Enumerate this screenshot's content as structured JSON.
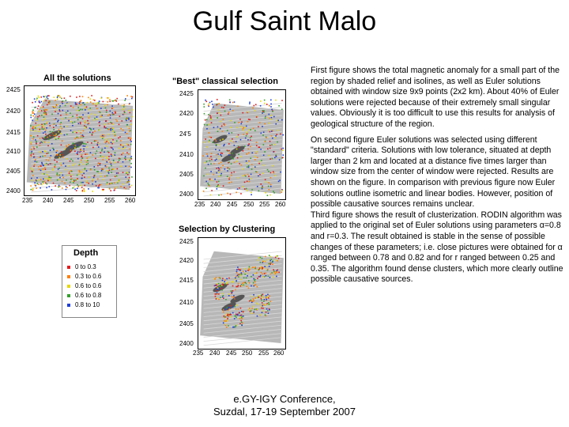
{
  "slide": {
    "title": "Gulf Saint Malo",
    "footer_line1": "e.GY-IGY Conference,",
    "footer_line2": "Suzdal, 17-19 September 2007"
  },
  "panels": [
    {
      "id": "all",
      "title": "All the solutions",
      "y_ticks": [
        "2425",
        "2420",
        "2415",
        "2410",
        "2405",
        "2400"
      ],
      "x_ticks": [
        "235",
        "240",
        "245",
        "250",
        "255",
        "260"
      ]
    },
    {
      "id": "best",
      "title": "\"Best\" classical  selection",
      "y_ticks": [
        "2425",
        "2420",
        "24'5",
        "2410",
        "2405",
        "2400"
      ],
      "x_ticks": [
        "235",
        "240",
        "245",
        "250",
        "255",
        "260"
      ]
    },
    {
      "id": "cluster",
      "title": "Selection by Clustering",
      "y_ticks": [
        "2425",
        "2420",
        "2415",
        "2410",
        "2405",
        "2400"
      ],
      "x_ticks": [
        "235",
        "240",
        "245",
        "250",
        "255",
        "260"
      ]
    }
  ],
  "legend": {
    "title": "Depth",
    "items": [
      {
        "label": "0   to   0.3",
        "color": "#e31a1c"
      },
      {
        "label": "0.3  to   0.6",
        "color": "#ff7f00"
      },
      {
        "label": "0.6  to   0.6",
        "color": "#e6d800"
      },
      {
        "label": "0.6  to   0.8",
        "color": "#33a02c"
      },
      {
        "label": "0.8  to   10",
        "color": "#1f3fd6"
      }
    ]
  },
  "text": {
    "p1": "First figure shows the total magnetic anomaly for a small part of the region by shaded relief and isolines, as well as Euler solutions obtained with window size 9x9 points (2x2 km). About 40% of Euler solutions were rejected because of their extremely small singular values. Obviously it is too difficult to use this results for analysis of geological structure of the region.",
    "p2": "On second figure Euler solutions was selected using different \"standard\" criteria. Solutions with low tolerance, situated at depth larger than 2 km and located at a distance five times larger than window size from the center of window were rejected. Results are shown on the figure. In comparison with previous figure now Euler solutions outline isometric and linear bodies. However, position of possible causative sources remains unclear.",
    "p3": "Third figure shows the result of clusterization. RODIN algorithm was applied to the original set of Euler solutions using parameters α=0.8 and r=0.3. The result obtained is stable in the sense of possible changes of these parameters; i.e. close pictures were obtained for α ranged between 0.78 and 0.82 and for r ranged between 0.25 and 0.35. The algorithm found dense clusters, which more clearly outline possible causative sources."
  }
}
